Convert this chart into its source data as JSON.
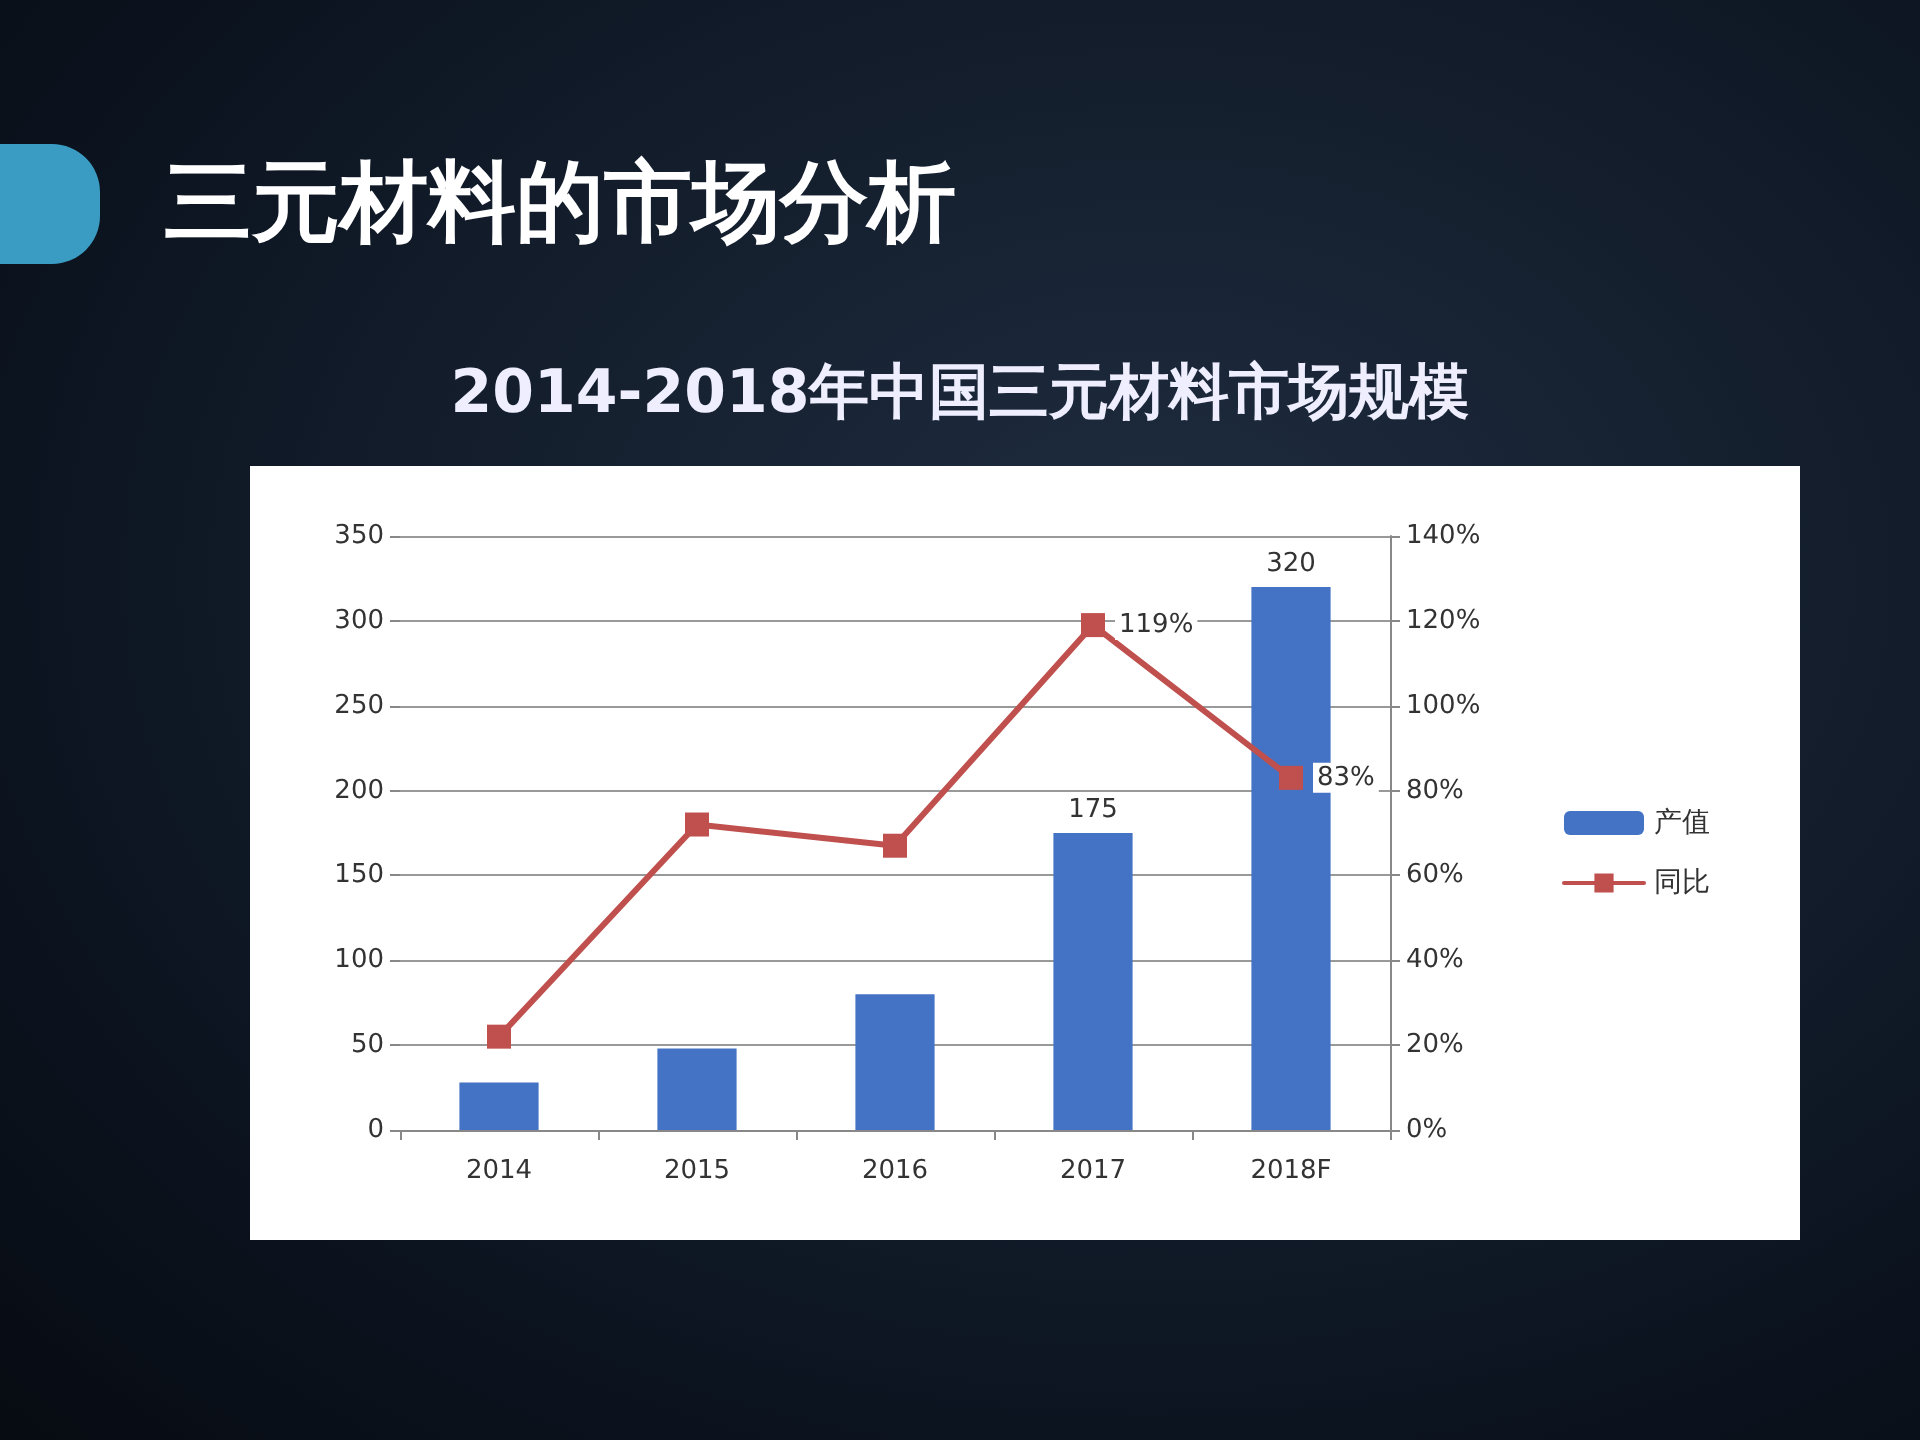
{
  "chart_data": {
    "type": "bar",
    "title": "三元材料的市场分析",
    "subtitle": "2014-2018年中国三元材料市场规模",
    "categories": [
      "2014",
      "2015",
      "2016",
      "2017",
      "2018F"
    ],
    "series": [
      {
        "name": "产值",
        "color": "#4472c4",
        "values": [
          28,
          48,
          80,
          175,
          320
        ],
        "value_labels": [
          null,
          null,
          null,
          "175",
          "320"
        ]
      },
      {
        "name": "同比",
        "type": "line",
        "axis": "y2",
        "color": "#c0504d",
        "values": [
          22,
          72,
          67,
          119,
          83
        ],
        "value_labels": [
          null,
          null,
          null,
          "119%",
          "83%"
        ]
      }
    ],
    "ylim": [
      0,
      350
    ],
    "yticks": [
      0,
      50,
      100,
      150,
      200,
      250,
      300,
      350
    ],
    "y2lim": [
      0,
      140
    ],
    "y2ticks": [
      {
        "value": 0,
        "label": "0%"
      },
      {
        "value": 20,
        "label": "20%"
      },
      {
        "value": 40,
        "label": "40%"
      },
      {
        "value": 60,
        "label": "60%"
      },
      {
        "value": 80,
        "label": "80%"
      },
      {
        "value": 100,
        "label": "100%"
      },
      {
        "value": 120,
        "label": "120%"
      },
      {
        "value": 140,
        "label": "140%"
      }
    ],
    "grid": "y",
    "legend": "right",
    "marker": "square"
  }
}
